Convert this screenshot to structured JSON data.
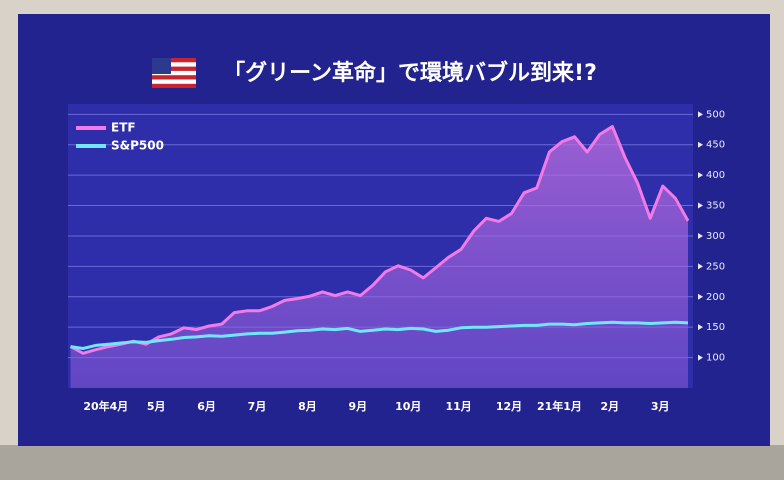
{
  "chart_data": {
    "type": "line",
    "title": "「グリーン革命」で環境バブル到来!?",
    "x": [
      -0.7,
      -0.45,
      -0.2,
      0.05,
      0.3,
      0.55,
      0.8,
      1.05,
      1.3,
      1.55,
      1.8,
      2.05,
      2.3,
      2.55,
      2.8,
      3.05,
      3.3,
      3.55,
      3.8,
      4.05,
      4.3,
      4.55,
      4.8,
      5.05,
      5.3,
      5.55,
      5.8,
      6.05,
      6.3,
      6.55,
      6.8,
      7.05,
      7.3,
      7.55,
      7.8,
      8.05,
      8.3,
      8.55,
      8.8,
      9.05,
      9.3,
      9.55,
      9.8,
      10.05,
      10.3,
      10.55,
      10.8,
      11.05,
      11.3,
      11.55
    ],
    "series": [
      {
        "name": "ETF",
        "color": "#f47ae8",
        "area": true,
        "values": [
          118,
          107,
          113,
          118,
          122,
          127,
          122,
          134,
          139,
          149,
          146,
          152,
          155,
          174,
          177,
          177,
          184,
          194,
          197,
          201,
          208,
          202,
          208,
          202,
          219,
          241,
          251,
          244,
          231,
          248,
          265,
          278,
          308,
          329,
          324,
          337,
          371,
          379,
          438,
          455,
          463,
          438,
          467,
          480,
          429,
          387,
          329,
          382,
          362,
          325
        ]
      },
      {
        "name": "S&P500",
        "color": "#72e6ff",
        "area": false,
        "values": [
          118,
          115,
          120,
          122,
          124,
          126,
          125,
          128,
          130,
          133,
          134,
          136,
          135,
          137,
          139,
          140,
          140,
          142,
          144,
          145,
          147,
          146,
          148,
          143,
          145,
          147,
          146,
          148,
          147,
          143,
          145,
          149,
          150,
          150,
          151,
          152,
          153,
          153,
          155,
          155,
          154,
          156,
          157,
          158,
          157,
          157,
          156,
          157,
          158,
          157
        ]
      }
    ],
    "xlim": [
      -0.75,
      11.65
    ],
    "xticks": [
      {
        "value": 0,
        "label": "20年4月"
      },
      {
        "value": 1,
        "label": "5月"
      },
      {
        "value": 2,
        "label": "6月"
      },
      {
        "value": 3,
        "label": "7月"
      },
      {
        "value": 4,
        "label": "8月"
      },
      {
        "value": 5,
        "label": "9月"
      },
      {
        "value": 6,
        "label": "10月"
      },
      {
        "value": 7,
        "label": "11月"
      },
      {
        "value": 8,
        "label": "12月"
      },
      {
        "value": 9,
        "label": "21年1月"
      },
      {
        "value": 10,
        "label": "2月"
      },
      {
        "value": 11,
        "label": "3月"
      }
    ],
    "ylim": [
      50,
      517
    ],
    "yticks": [
      100,
      150,
      200,
      250,
      300,
      350,
      400,
      450,
      500
    ],
    "grid": true
  }
}
